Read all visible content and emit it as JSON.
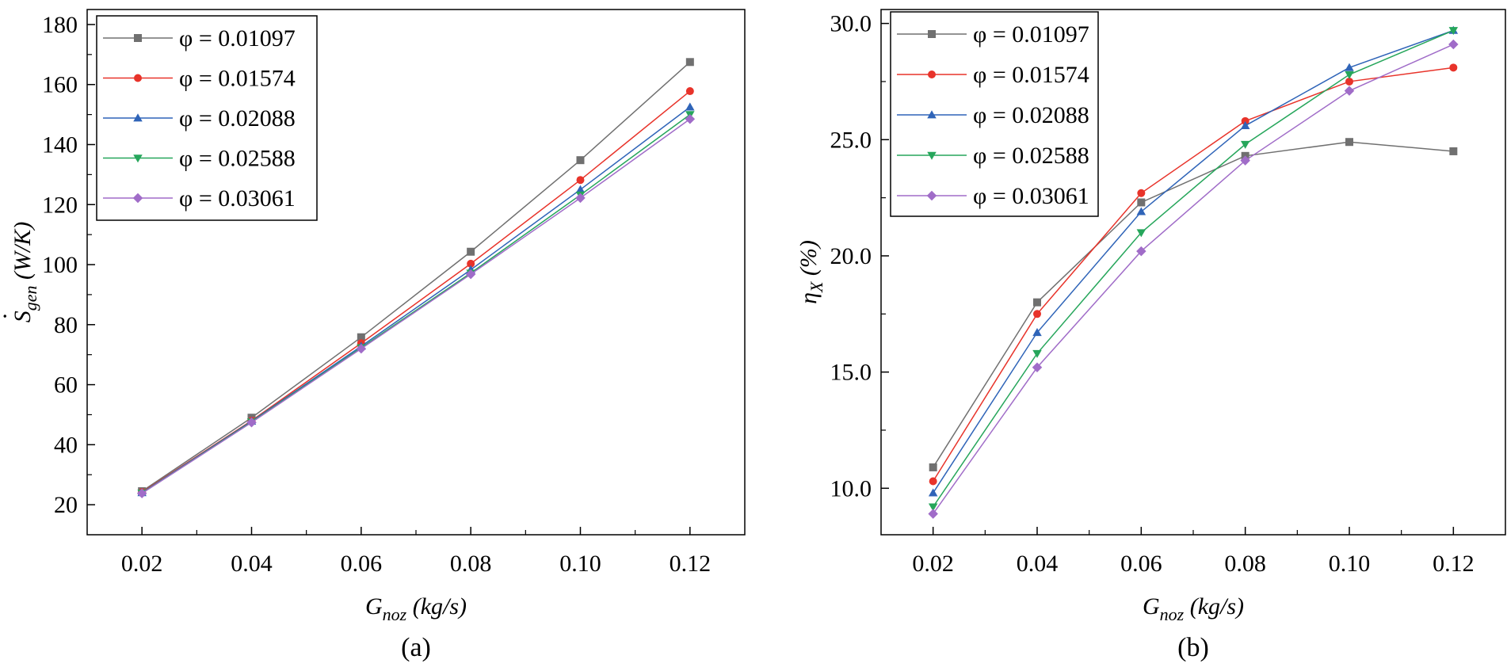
{
  "chart_data": [
    {
      "type": "line",
      "panel_label": "(a)",
      "title": "",
      "xlabel": {
        "main": "G",
        "sub": "noz",
        "unit": " (kg/s)"
      },
      "ylabel": {
        "main": "S",
        "sub": "gen",
        "unit": " (W/K)",
        "dot": "·"
      },
      "xlim": [
        0.01,
        0.13
      ],
      "ylim": [
        10,
        185
      ],
      "xticks": [
        0.02,
        0.04,
        0.06,
        0.08,
        0.1,
        0.12
      ],
      "xtick_labels": [
        "0.02",
        "0.04",
        "0.06",
        "0.08",
        "0.10",
        "0.12"
      ],
      "yticks": [
        20,
        40,
        60,
        80,
        100,
        120,
        140,
        160,
        180
      ],
      "ytick_labels": [
        "20",
        "40",
        "60",
        "80",
        "100",
        "120",
        "140",
        "160",
        "180"
      ],
      "grid": false,
      "legend_position": "top-left",
      "x": [
        0.02,
        0.04,
        0.06,
        0.08,
        0.1,
        0.12
      ],
      "series": [
        {
          "name": "φ = 0.01097",
          "color": "#707070",
          "marker": "square",
          "values": [
            24.5,
            49.0,
            75.8,
            104.3,
            134.8,
            167.5
          ]
        },
        {
          "name": "φ = 0.01574",
          "color": "#e8332a",
          "marker": "circle",
          "values": [
            24.2,
            48.0,
            73.8,
            100.3,
            128.2,
            157.8
          ]
        },
        {
          "name": "φ = 0.02088",
          "color": "#2f64b8",
          "marker": "triangle-up",
          "values": [
            24.0,
            47.8,
            72.8,
            98.3,
            125.0,
            152.5
          ]
        },
        {
          "name": "φ = 0.02588",
          "color": "#26a65b",
          "marker": "triangle-down",
          "values": [
            23.9,
            47.6,
            72.3,
            97.2,
            123.2,
            150.0
          ]
        },
        {
          "name": "φ = 0.03061",
          "color": "#a06cc8",
          "marker": "diamond",
          "values": [
            23.8,
            47.4,
            72.0,
            96.8,
            122.2,
            148.5
          ]
        }
      ]
    },
    {
      "type": "line",
      "panel_label": "(b)",
      "title": "",
      "xlabel": {
        "main": "G",
        "sub": "noz",
        "unit": " (kg/s)"
      },
      "ylabel": {
        "main": "η",
        "sub": "X",
        "unit": " (%)"
      },
      "xlim": [
        0.01,
        0.13
      ],
      "ylim": [
        8,
        30.6
      ],
      "xticks": [
        0.02,
        0.04,
        0.06,
        0.08,
        0.1,
        0.12
      ],
      "xtick_labels": [
        "0.02",
        "0.04",
        "0.06",
        "0.08",
        "0.10",
        "0.12"
      ],
      "yticks": [
        10,
        15,
        20,
        25,
        30
      ],
      "ytick_labels": [
        "10.0",
        "15.0",
        "20.0",
        "25.0",
        "30.0"
      ],
      "grid": false,
      "legend_position": "top-left",
      "x": [
        0.02,
        0.04,
        0.06,
        0.08,
        0.1,
        0.12
      ],
      "series": [
        {
          "name": "φ = 0.01097",
          "color": "#707070",
          "marker": "square",
          "values": [
            10.9,
            18.0,
            22.3,
            24.3,
            24.9,
            24.5
          ]
        },
        {
          "name": "φ = 0.01574",
          "color": "#e8332a",
          "marker": "circle",
          "values": [
            10.3,
            17.5,
            22.7,
            25.8,
            27.5,
            28.1
          ]
        },
        {
          "name": "φ = 0.02088",
          "color": "#2f64b8",
          "marker": "triangle-up",
          "values": [
            9.8,
            16.7,
            21.9,
            25.6,
            28.1,
            29.7
          ]
        },
        {
          "name": "φ = 0.02588",
          "color": "#26a65b",
          "marker": "triangle-down",
          "values": [
            9.2,
            15.8,
            21.0,
            24.8,
            27.8,
            29.7
          ]
        },
        {
          "name": "φ = 0.03061",
          "color": "#a06cc8",
          "marker": "diamond",
          "values": [
            8.9,
            15.2,
            20.2,
            24.1,
            27.1,
            29.1
          ]
        }
      ]
    }
  ]
}
